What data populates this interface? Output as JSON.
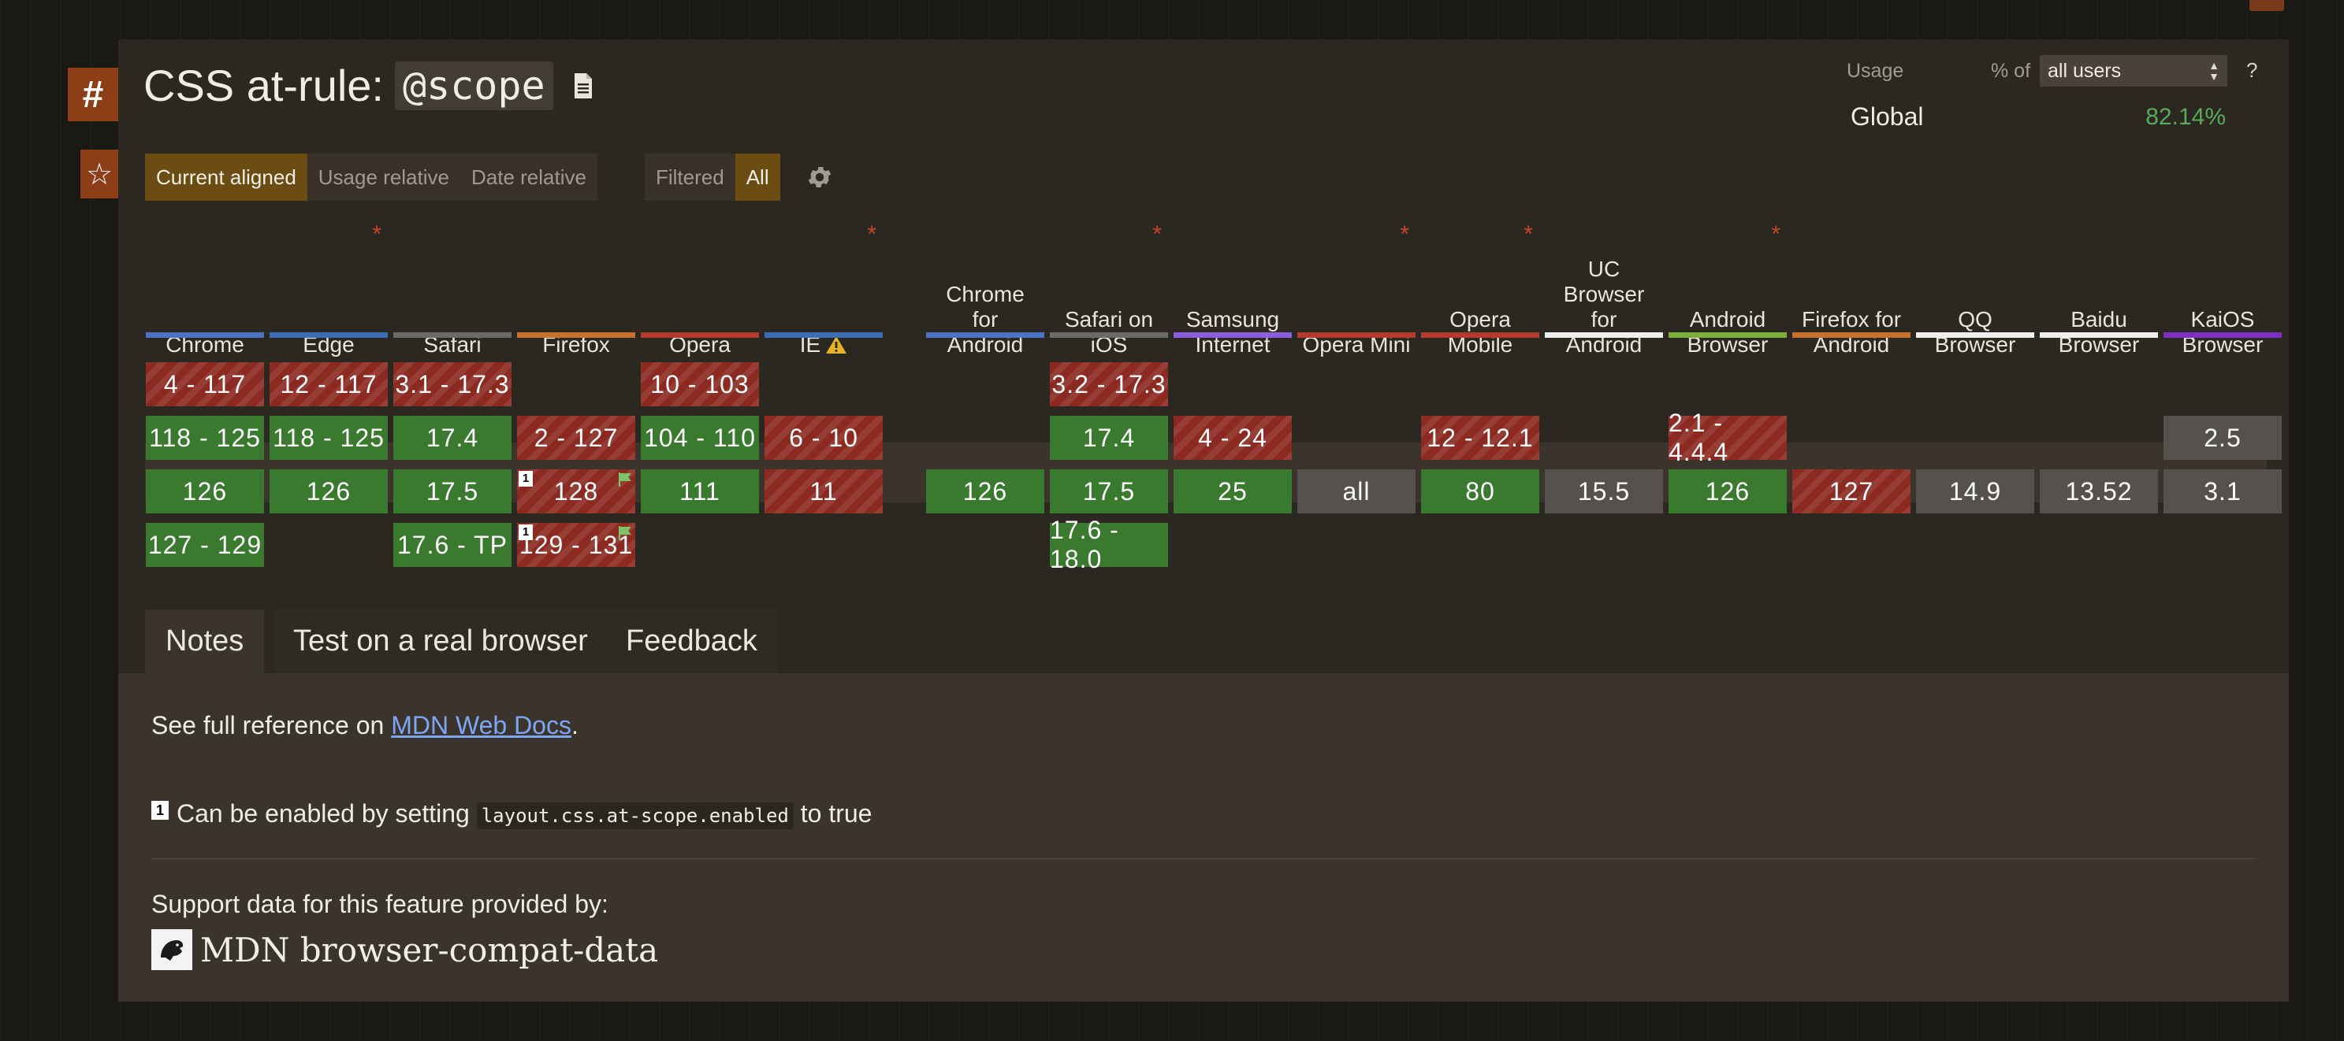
{
  "side": {
    "hash": "#",
    "star": "☆"
  },
  "title": {
    "prefix": "CSS at-rule: ",
    "code": "@scope"
  },
  "view_buttons": [
    "Current aligned",
    "Usage relative",
    "Date relative"
  ],
  "filter_buttons": [
    "Filtered",
    "All"
  ],
  "usage": {
    "label": "Usage",
    "pct_of": "% of",
    "select_value": "all users",
    "help": "?",
    "region": "Global",
    "value": "82.14%"
  },
  "colors": {
    "supported": "#3a7a2f",
    "unsupported": "#8c2a22",
    "unknown": "#55524d",
    "accent": "#6b4d14"
  },
  "browsers": [
    {
      "id": "chrome",
      "lines": [
        "Chrome"
      ],
      "bar": "#4a73c6",
      "ast": false,
      "warn": false
    },
    {
      "id": "edge",
      "lines": [
        "Edge"
      ],
      "bar": "#3a6db4",
      "ast": true,
      "warn": false
    },
    {
      "id": "safari",
      "lines": [
        "Safari"
      ],
      "bar": "#6a6a6a",
      "ast": false,
      "warn": false
    },
    {
      "id": "firefox",
      "lines": [
        "Firefox"
      ],
      "bar": "#c9712c",
      "ast": false,
      "warn": false
    },
    {
      "id": "opera",
      "lines": [
        "Opera"
      ],
      "bar": "#b33a2f",
      "ast": false,
      "warn": false
    },
    {
      "id": "ie",
      "lines": [
        "IE"
      ],
      "bar": "#3a6db4",
      "ast": true,
      "warn": true
    },
    {
      "id": "chrome-android",
      "lines": [
        "Chrome",
        "for",
        "Android"
      ],
      "bar": "#4a73c6",
      "ast": false,
      "warn": false
    },
    {
      "id": "safari-ios",
      "lines": [
        "Safari on",
        "iOS"
      ],
      "bar": "#6a6a6a",
      "ast": true,
      "warn": false
    },
    {
      "id": "samsung",
      "lines": [
        "Samsung",
        "Internet"
      ],
      "bar": "#8a5ee0",
      "ast": false,
      "warn": false
    },
    {
      "id": "opera-mini",
      "lines": [
        "Opera Mini"
      ],
      "bar": "#b33a2f",
      "ast": true,
      "warn": false
    },
    {
      "id": "opera-mobile",
      "lines": [
        "Opera",
        "Mobile"
      ],
      "bar": "#b33a2f",
      "ast": true,
      "warn": false
    },
    {
      "id": "uc",
      "lines": [
        "UC",
        "Browser",
        "for",
        "Android"
      ],
      "bar": "#efefef",
      "ast": false,
      "warn": false
    },
    {
      "id": "android",
      "lines": [
        "Android",
        "Browser"
      ],
      "bar": "#7cae3e",
      "ast": true,
      "warn": false
    },
    {
      "id": "firefox-android",
      "lines": [
        "Firefox for",
        "Android"
      ],
      "bar": "#c9712c",
      "ast": false,
      "warn": false
    },
    {
      "id": "qq",
      "lines": [
        "QQ",
        "Browser"
      ],
      "bar": "#efefef",
      "ast": false,
      "warn": false
    },
    {
      "id": "baidu",
      "lines": [
        "Baidu",
        "Browser"
      ],
      "bar": "#efefef",
      "ast": false,
      "warn": false
    },
    {
      "id": "kaios",
      "lines": [
        "KaiOS",
        "Browser"
      ],
      "bar": "#7d2fc6",
      "ast": false,
      "warn": false
    }
  ],
  "support": [
    [
      {
        "r": 0,
        "v": "4 - 117",
        "s": "n"
      },
      {
        "r": 1,
        "v": "118 - 125",
        "s": "y"
      },
      {
        "r": 2,
        "v": "126",
        "s": "y"
      },
      {
        "r": 3,
        "v": "127 - 129",
        "s": "y"
      }
    ],
    [
      {
        "r": 0,
        "v": "12 - 117",
        "s": "n"
      },
      {
        "r": 1,
        "v": "118 - 125",
        "s": "y"
      },
      {
        "r": 2,
        "v": "126",
        "s": "y"
      }
    ],
    [
      {
        "r": 0,
        "v": "3.1 - 17.3",
        "s": "n"
      },
      {
        "r": 1,
        "v": "17.4",
        "s": "y"
      },
      {
        "r": 2,
        "v": "17.5",
        "s": "y"
      },
      {
        "r": 3,
        "v": "17.6 - TP",
        "s": "y"
      }
    ],
    [
      {
        "r": 1,
        "v": "2 - 127",
        "s": "n"
      },
      {
        "r": 2,
        "v": "128",
        "s": "n",
        "fn": "1",
        "flag": true
      },
      {
        "r": 3,
        "v": "129 - 131",
        "s": "n",
        "fn": "1",
        "flag": true
      }
    ],
    [
      {
        "r": 0,
        "v": "10 - 103",
        "s": "n"
      },
      {
        "r": 1,
        "v": "104 - 110",
        "s": "y"
      },
      {
        "r": 2,
        "v": "111",
        "s": "y"
      }
    ],
    [
      {
        "r": 1,
        "v": "6 - 10",
        "s": "n"
      },
      {
        "r": 2,
        "v": "11",
        "s": "n"
      }
    ],
    [
      {
        "r": 2,
        "v": "126",
        "s": "y"
      }
    ],
    [
      {
        "r": 0,
        "v": "3.2 - 17.3",
        "s": "n"
      },
      {
        "r": 1,
        "v": "17.4",
        "s": "y"
      },
      {
        "r": 2,
        "v": "17.5",
        "s": "y"
      },
      {
        "r": 3,
        "v": "17.6 - 18.0",
        "s": "y"
      }
    ],
    [
      {
        "r": 1,
        "v": "4 - 24",
        "s": "n"
      },
      {
        "r": 2,
        "v": "25",
        "s": "y"
      }
    ],
    [
      {
        "r": 2,
        "v": "all",
        "s": "u"
      }
    ],
    [
      {
        "r": 1,
        "v": "12 - 12.1",
        "s": "n"
      },
      {
        "r": 2,
        "v": "80",
        "s": "y"
      }
    ],
    [
      {
        "r": 2,
        "v": "15.5",
        "s": "u"
      }
    ],
    [
      {
        "r": 1,
        "v": "2.1 - 4.4.4",
        "s": "n"
      },
      {
        "r": 2,
        "v": "126",
        "s": "y"
      }
    ],
    [
      {
        "r": 2,
        "v": "127",
        "s": "n"
      }
    ],
    [
      {
        "r": 2,
        "v": "14.9",
        "s": "u"
      }
    ],
    [
      {
        "r": 2,
        "v": "13.52",
        "s": "u"
      }
    ],
    [
      {
        "r": 1,
        "v": "2.5",
        "s": "u"
      },
      {
        "r": 2,
        "v": "3.1",
        "s": "u"
      }
    ]
  ],
  "tabs": [
    "Notes",
    "Test on a real browser",
    "Feedback"
  ],
  "notes": {
    "ref_prefix": "See full reference on ",
    "ref_link": "MDN Web Docs",
    "ref_suffix": ".",
    "fn_num": "1",
    "fn_prefix": "Can be enabled by setting ",
    "fn_code": "layout.css.at-scope.enabled",
    "fn_suffix": " to true",
    "support_by": "Support data for this feature provided by:",
    "mdn_name": "MDN browser-compat-data"
  }
}
